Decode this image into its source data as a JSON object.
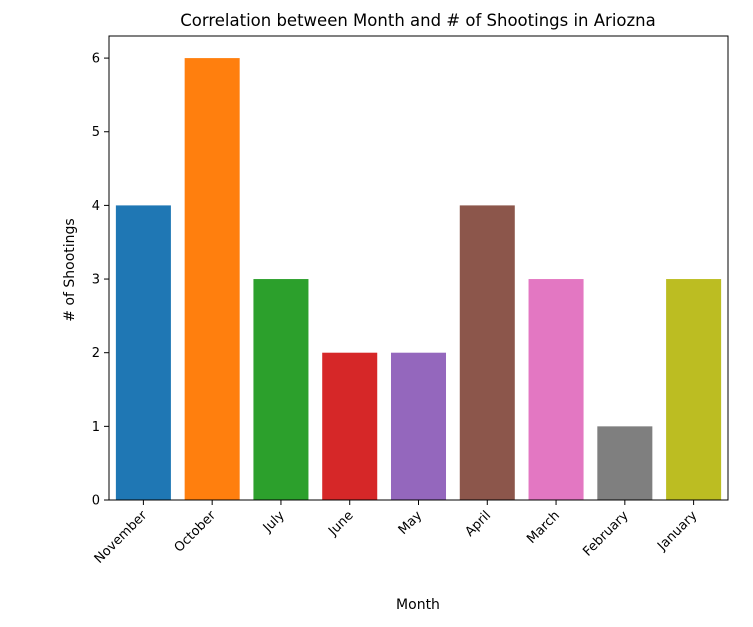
{
  "chart_data": {
    "type": "bar",
    "title": "Correlation between Month and # of Shootings in Ariozna",
    "xlabel": "Month",
    "ylabel": "# of Shootings",
    "categories": [
      "November",
      "October",
      "July",
      "June",
      "May",
      "April",
      "March",
      "February",
      "January"
    ],
    "values": [
      4,
      6,
      3,
      2,
      2,
      4,
      3,
      1,
      3
    ],
    "colors": [
      "#1f77b4",
      "#ff7f0e",
      "#2ca02c",
      "#d62728",
      "#9467bd",
      "#8c564b",
      "#e377c2",
      "#7f7f7f",
      "#bcbd22"
    ],
    "ylim": [
      0,
      6.3
    ],
    "yticks": [
      "0",
      "1",
      "2",
      "3",
      "4",
      "5",
      "6"
    ],
    "grid": false,
    "legend": false
  }
}
